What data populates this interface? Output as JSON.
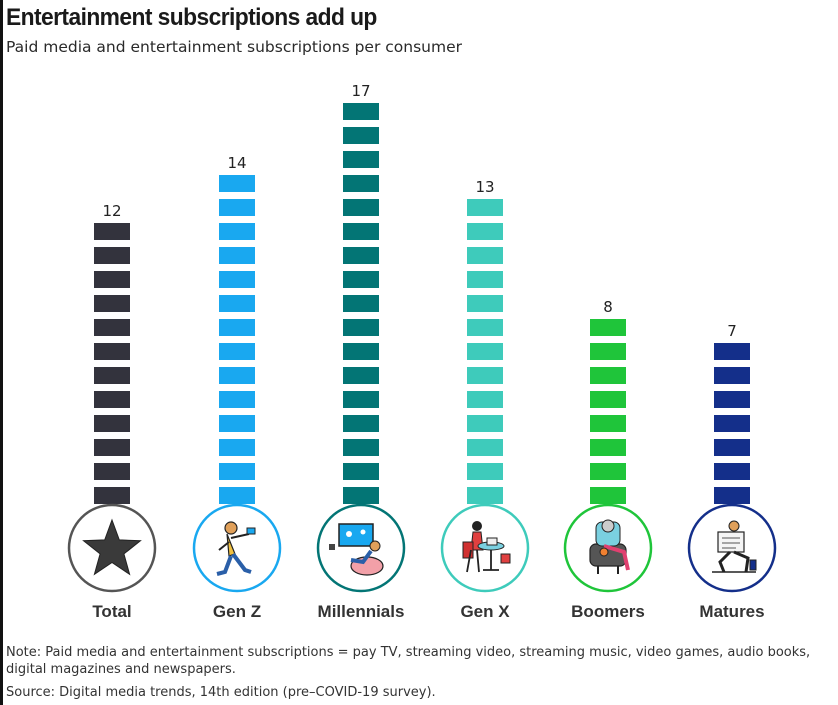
{
  "title": "Entertainment subscriptions add up",
  "subtitle": "Paid media and entertainment subscriptions per consumer",
  "note": "Note: Paid media and entertainment subscriptions = pay TV, streaming video, streaming music, video games, audio books, digital magazines and newspapers.",
  "source": "Source: Digital media trends, 14th edition (pre–COVID-19 survey).",
  "chart_data": {
    "type": "bar",
    "categories": [
      "Total",
      "Gen Z",
      "Millennials",
      "Gen X",
      "Boomers",
      "Matures"
    ],
    "values": [
      12,
      14,
      17,
      13,
      8,
      7
    ],
    "colors": [
      "#33333d",
      "#19a8f0",
      "#037575",
      "#3ecbbb",
      "#1fc53a",
      "#142f8a"
    ],
    "icons": [
      "star-icon",
      "dancing-person-icon",
      "gamer-on-beanbag-icon",
      "person-with-laptop-icon",
      "person-knitting-icon",
      "person-reading-newspaper-icon"
    ],
    "circle_colors": [
      "#555555",
      "#19a8f0",
      "#037575",
      "#3ecbbb",
      "#1fc53a",
      "#142f8a"
    ],
    "xlabel": "",
    "ylabel": "",
    "ylim": [
      0,
      17
    ],
    "grid": false,
    "legend": "none"
  }
}
